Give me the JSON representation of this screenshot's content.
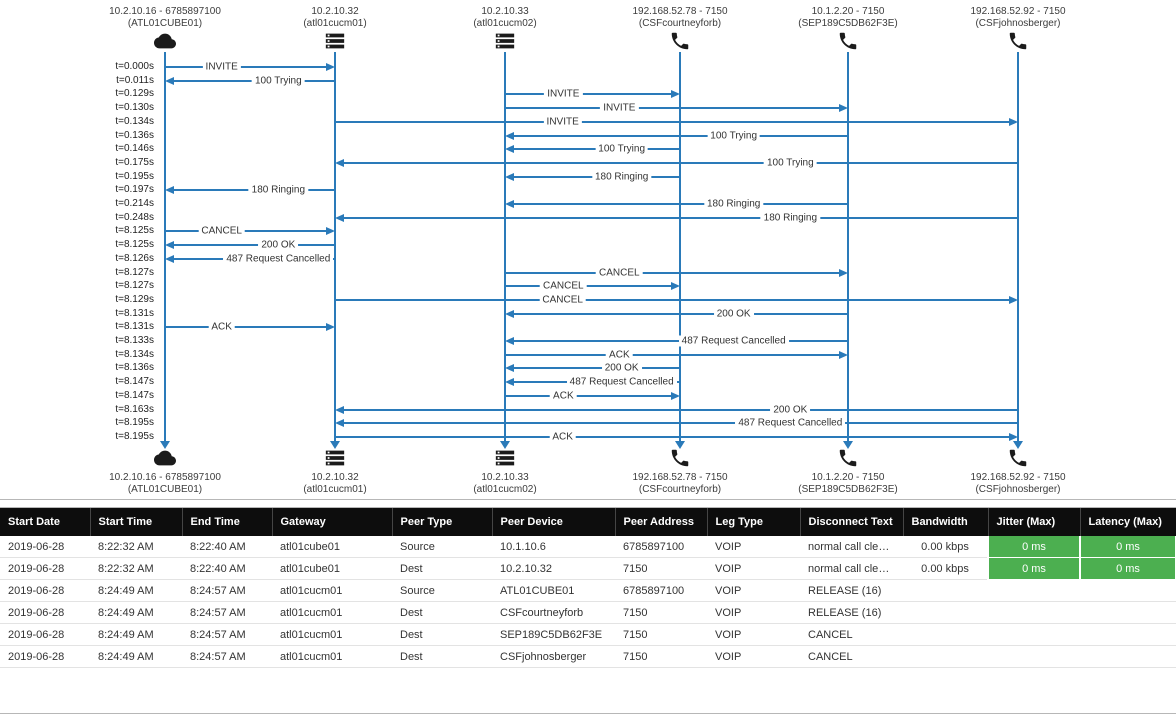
{
  "diagram": {
    "line_color": "#2a7ab9",
    "label_text_color": "#333333",
    "endpoints": [
      {
        "line1": "10.2.10.16 - 6785897100",
        "line2": "(ATL01CUBE01)",
        "icon": "cloud-icon"
      },
      {
        "line1": "10.2.10.32",
        "line2": "(atl01cucm01)",
        "icon": "server-icon"
      },
      {
        "line1": "10.2.10.33",
        "line2": "(atl01cucm02)",
        "icon": "server-icon"
      },
      {
        "line1": "192.168.52.78 - 7150",
        "line2": "(CSFcourtneyforb)",
        "icon": "phone-icon"
      },
      {
        "line1": "10.1.2.20 - 7150",
        "line2": "(SEP189C5DB62F3E)",
        "icon": "phone-icon"
      },
      {
        "line1": "192.168.52.92 - 7150",
        "line2": "(CSFjohnosberger)",
        "icon": "phone-icon"
      }
    ],
    "messages": [
      {
        "time": "t=0.000s",
        "label": "INVITE",
        "from": 0,
        "to": 1
      },
      {
        "time": "t=0.011s",
        "label": "100 Trying",
        "from": 1,
        "to": 0
      },
      {
        "time": "t=0.129s",
        "label": "INVITE",
        "from": 2,
        "to": 3
      },
      {
        "time": "t=0.130s",
        "label": "INVITE",
        "from": 2,
        "to": 4
      },
      {
        "time": "t=0.134s",
        "label": "INVITE",
        "from": 1,
        "to": 5
      },
      {
        "time": "t=0.136s",
        "label": "100 Trying",
        "from": 4,
        "to": 2
      },
      {
        "time": "t=0.146s",
        "label": "100 Trying",
        "from": 3,
        "to": 2
      },
      {
        "time": "t=0.175s",
        "label": "100 Trying",
        "from": 5,
        "to": 1
      },
      {
        "time": "t=0.195s",
        "label": "180 Ringing",
        "from": 3,
        "to": 2
      },
      {
        "time": "t=0.197s",
        "label": "180 Ringing",
        "from": 1,
        "to": 0
      },
      {
        "time": "t=0.214s",
        "label": "180 Ringing",
        "from": 4,
        "to": 2
      },
      {
        "time": "t=0.248s",
        "label": "180 Ringing",
        "from": 5,
        "to": 1
      },
      {
        "time": "t=8.125s",
        "label": "CANCEL",
        "from": 0,
        "to": 1
      },
      {
        "time": "t=8.125s",
        "label": "200 OK",
        "from": 1,
        "to": 0
      },
      {
        "time": "t=8.126s",
        "label": "487 Request Cancelled",
        "from": 1,
        "to": 0
      },
      {
        "time": "t=8.127s",
        "label": "CANCEL",
        "from": 2,
        "to": 4
      },
      {
        "time": "t=8.127s",
        "label": "CANCEL",
        "from": 2,
        "to": 3
      },
      {
        "time": "t=8.129s",
        "label": "CANCEL",
        "from": 1,
        "to": 5
      },
      {
        "time": "t=8.131s",
        "label": "200 OK",
        "from": 4,
        "to": 2
      },
      {
        "time": "t=8.131s",
        "label": "ACK",
        "from": 0,
        "to": 1
      },
      {
        "time": "t=8.133s",
        "label": "487 Request Cancelled",
        "from": 4,
        "to": 2
      },
      {
        "time": "t=8.134s",
        "label": "ACK",
        "from": 2,
        "to": 4
      },
      {
        "time": "t=8.136s",
        "label": "200 OK",
        "from": 3,
        "to": 2
      },
      {
        "time": "t=8.147s",
        "label": "487 Request Cancelled",
        "from": 3,
        "to": 2
      },
      {
        "time": "t=8.147s",
        "label": "ACK",
        "from": 2,
        "to": 3
      },
      {
        "time": "t=8.163s",
        "label": "200 OK",
        "from": 5,
        "to": 1
      },
      {
        "time": "t=8.195s",
        "label": "487 Request Cancelled",
        "from": 5,
        "to": 1
      },
      {
        "time": "t=8.195s",
        "label": "ACK",
        "from": 1,
        "to": 5
      }
    ]
  },
  "table": {
    "header_bg": "#0d0d0d",
    "header_text_color": "#ffffff",
    "status_green": "#4caf50",
    "columns": [
      "Start Date",
      "Start Time",
      "End Time",
      "Gateway",
      "Peer Type",
      "Peer Device",
      "Peer Address",
      "Leg Type",
      "Disconnect Text",
      "Bandwidth",
      "Jitter (Max)",
      "Latency (Max)"
    ],
    "rows": [
      {
        "start_date": "2019-06-28",
        "start_time": "8:22:32 AM",
        "end_time": "8:22:40 AM",
        "gateway": "atl01cube01",
        "peer_type": "Source",
        "peer_device": "10.1.10.6",
        "peer_address": "6785897100",
        "leg_type": "VOIP",
        "disconnect_text": "normal call cleari...",
        "bandwidth": "0.00 kbps",
        "jitter": "0 ms",
        "latency": "0 ms"
      },
      {
        "start_date": "2019-06-28",
        "start_time": "8:22:32 AM",
        "end_time": "8:22:40 AM",
        "gateway": "atl01cube01",
        "peer_type": "Dest",
        "peer_device": "10.2.10.32",
        "peer_address": "7150",
        "leg_type": "VOIP",
        "disconnect_text": "normal call cleari...",
        "bandwidth": "0.00 kbps",
        "jitter": "0 ms",
        "latency": "0 ms"
      },
      {
        "start_date": "2019-06-28",
        "start_time": "8:24:49 AM",
        "end_time": "8:24:57 AM",
        "gateway": "atl01cucm01",
        "peer_type": "Source",
        "peer_device": "ATL01CUBE01",
        "peer_address": "6785897100",
        "leg_type": "VOIP",
        "disconnect_text": "RELEASE (16)",
        "bandwidth": "",
        "jitter": "",
        "latency": ""
      },
      {
        "start_date": "2019-06-28",
        "start_time": "8:24:49 AM",
        "end_time": "8:24:57 AM",
        "gateway": "atl01cucm01",
        "peer_type": "Dest",
        "peer_device": "CSFcourtneyforb",
        "peer_address": "7150",
        "leg_type": "VOIP",
        "disconnect_text": "RELEASE (16)",
        "bandwidth": "",
        "jitter": "",
        "latency": ""
      },
      {
        "start_date": "2019-06-28",
        "start_time": "8:24:49 AM",
        "end_time": "8:24:57 AM",
        "gateway": "atl01cucm01",
        "peer_type": "Dest",
        "peer_device": "SEP189C5DB62F3E",
        "peer_address": "7150",
        "leg_type": "VOIP",
        "disconnect_text": "CANCEL",
        "bandwidth": "",
        "jitter": "",
        "latency": ""
      },
      {
        "start_date": "2019-06-28",
        "start_time": "8:24:49 AM",
        "end_time": "8:24:57 AM",
        "gateway": "atl01cucm01",
        "peer_type": "Dest",
        "peer_device": "CSFjohnosberger",
        "peer_address": "7150",
        "leg_type": "VOIP",
        "disconnect_text": "CANCEL",
        "bandwidth": "",
        "jitter": "",
        "latency": ""
      }
    ]
  }
}
